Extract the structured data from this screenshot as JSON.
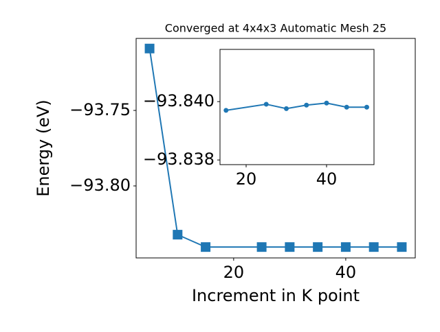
{
  "chart_data": [
    {
      "type": "line",
      "title": "Converged at 4x4x3 Automatic Mesh 25",
      "x_label": "Increment in K point",
      "y_label": "Energy (eV)",
      "x": [
        5,
        10,
        15,
        25,
        30,
        35,
        40,
        45,
        50
      ],
      "series": [
        {
          "color": "#1f77b4",
          "marker": "square",
          "values": [
            -93.709,
            -93.8323,
            -93.8405,
            -93.8405,
            -93.8405,
            -93.8405,
            -93.8405,
            -93.8405,
            -93.8405
          ]
        }
      ],
      "xlim": [
        2.6,
        52.4
      ],
      "ylim": [
        -93.8477,
        -93.7023
      ],
      "xticks": [
        20,
        40
      ],
      "yticks": [
        {
          "value": -93.8,
          "label": "−93.80"
        },
        {
          "value": -93.75,
          "label": "−93.75"
        }
      ]
    },
    {
      "type": "line",
      "x": [
        15,
        25,
        30,
        35,
        40,
        45,
        50
      ],
      "series": [
        {
          "color": "#1f77b4",
          "marker": "circle",
          "values": [
            -93.8397,
            -93.83991,
            -93.83976,
            -93.83988,
            -93.83995,
            -93.83981,
            -93.83981
          ]
        }
      ],
      "xlim": [
        13.5,
        51.8
      ],
      "ylim": [
        -93.83784,
        -93.84179
      ],
      "xticks": [
        20,
        40
      ],
      "yticks": [
        {
          "value": -93.838,
          "label": "−93.838"
        },
        {
          "value": -93.84,
          "label": "−93.840"
        }
      ]
    }
  ]
}
